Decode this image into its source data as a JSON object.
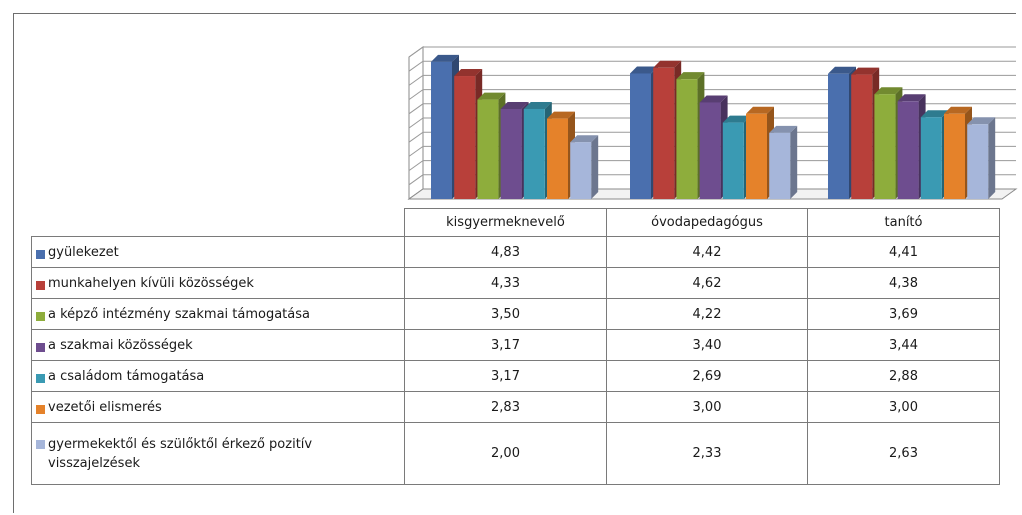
{
  "chart_data": {
    "type": "bar",
    "title": "",
    "xlabel": "",
    "ylabel": "",
    "ylim": [
      0,
      5
    ],
    "grid": true,
    "style": "3d-clustered-column",
    "legend_placement": "table-left",
    "categories": [
      "kisgyermeknevelő",
      "óvodapedagógus",
      "tanító"
    ],
    "series": [
      {
        "name": "gyülekezet",
        "color": "#4a6fae",
        "values": [
          4.83,
          4.42,
          4.41
        ],
        "labels": [
          "4,83",
          "4,42",
          "4,41"
        ]
      },
      {
        "name": "munkahelyen kívüli közösségek",
        "color": "#b8403a",
        "values": [
          4.33,
          4.62,
          4.38
        ],
        "labels": [
          "4,33",
          "4,62",
          "4,38"
        ]
      },
      {
        "name": "a képző intézmény szakmai támogatása",
        "color": "#8ead3c",
        "values": [
          3.5,
          4.22,
          3.69
        ],
        "labels": [
          "3,50",
          "4,22",
          "3,69"
        ]
      },
      {
        "name": "a szakmai közösségek",
        "color": "#6e4d8f",
        "values": [
          3.17,
          3.4,
          3.44
        ],
        "labels": [
          "3,17",
          "3,40",
          "3,44"
        ]
      },
      {
        "name": "a családom támogatása",
        "color": "#3a9ab3",
        "values": [
          3.17,
          2.69,
          2.88
        ],
        "labels": [
          "3,17",
          "2,69",
          "2,88"
        ]
      },
      {
        "name": "vezetői elismerés",
        "color": "#e5822a",
        "values": [
          2.83,
          3.0,
          3.0
        ],
        "labels": [
          "2,83",
          "3,00",
          "3,00"
        ]
      },
      {
        "name": "gyermekektől és szülőktől érkező pozitív visszajelzések",
        "color": "#a6b6da",
        "values": [
          2.0,
          2.33,
          2.63
        ],
        "labels": [
          "2,00",
          "2,33",
          "2,63"
        ]
      }
    ]
  }
}
